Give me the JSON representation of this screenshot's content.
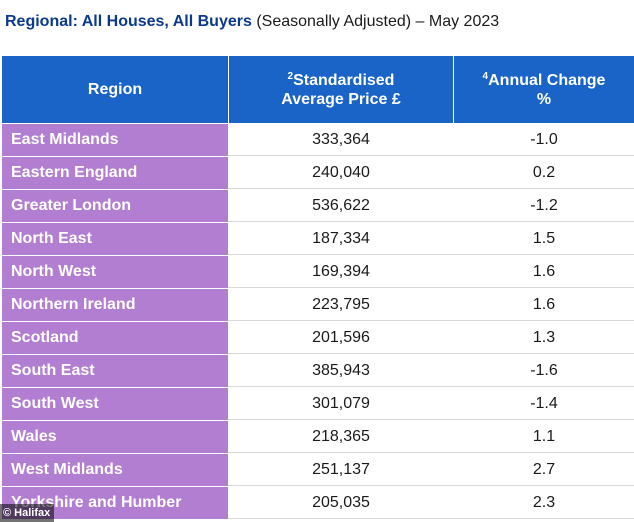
{
  "title": {
    "bold": "Regional: All Houses, All Buyers",
    "rest": " (Seasonally Adjusted) – May 2023"
  },
  "headers": {
    "region": "Region",
    "price_sup": "2",
    "price_line1": "Standardised",
    "price_line2": "Average Price £",
    "change_sup": "4",
    "change_line1": "Annual Change",
    "change_line2": "%"
  },
  "rows": [
    {
      "region": "East Midlands",
      "price": "333,364",
      "change": "-1.0"
    },
    {
      "region": "Eastern England",
      "price": "240,040",
      "change": "0.2"
    },
    {
      "region": "Greater London",
      "price": "536,622",
      "change": "-1.2"
    },
    {
      "region": "North East",
      "price": "187,334",
      "change": "1.5"
    },
    {
      "region": "North West",
      "price": "169,394",
      "change": "1.6"
    },
    {
      "region": "Northern Ireland",
      "price": "223,795",
      "change": "1.6"
    },
    {
      "region": "Scotland",
      "price": "201,596",
      "change": "1.3"
    },
    {
      "region": "South East",
      "price": "385,943",
      "change": "-1.6"
    },
    {
      "region": "South West",
      "price": "301,079",
      "change": "-1.4"
    },
    {
      "region": "Wales",
      "price": "218,365",
      "change": "1.1"
    },
    {
      "region": "West Midlands",
      "price": "251,137",
      "change": "2.7"
    },
    {
      "region": "Yorkshire and Humber",
      "price": "205,035",
      "change": "2.3"
    }
  ],
  "credit": "© Halifax",
  "colors": {
    "header_bg": "#1a63c7",
    "region_bg": "#b27ed1",
    "title_bold": "#0b3a8c"
  }
}
